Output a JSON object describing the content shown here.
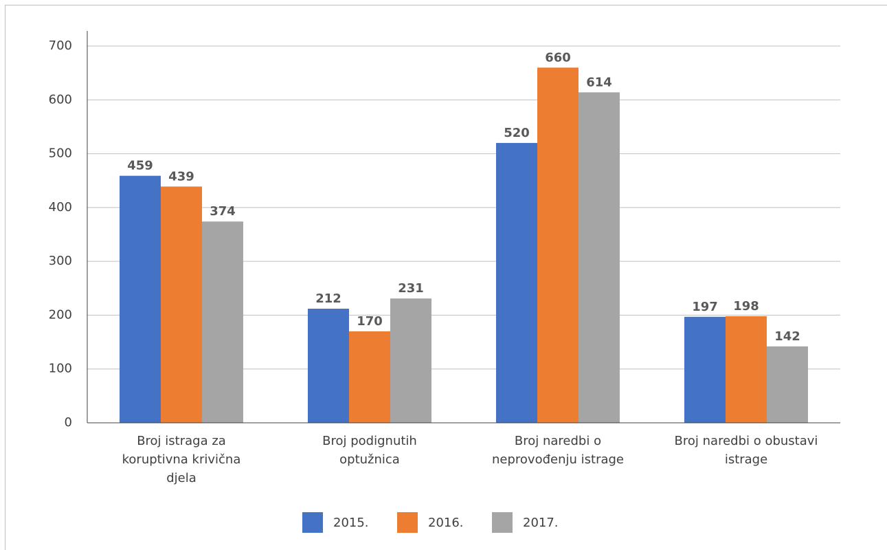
{
  "chart_data": {
    "type": "bar",
    "categories": [
      "Broj istraga za koruptivna krivična djela",
      "Broj podignutih optužnica",
      "Broj naredbi o neprovođenju istrage",
      "Broj naredbi o obustavi istrage"
    ],
    "series": [
      {
        "name": "2015.",
        "color": "#4472c4",
        "values": [
          459,
          212,
          520,
          197
        ]
      },
      {
        "name": "2016.",
        "color": "#ed7d31",
        "values": [
          439,
          170,
          660,
          198
        ]
      },
      {
        "name": "2017.",
        "color": "#a5a5a5",
        "values": [
          374,
          231,
          614,
          142
        ]
      }
    ],
    "ylim": [
      0,
      700
    ],
    "yticks": [
      0,
      100,
      200,
      300,
      400,
      500,
      600,
      700
    ],
    "grid": true,
    "legend": "bottom"
  }
}
